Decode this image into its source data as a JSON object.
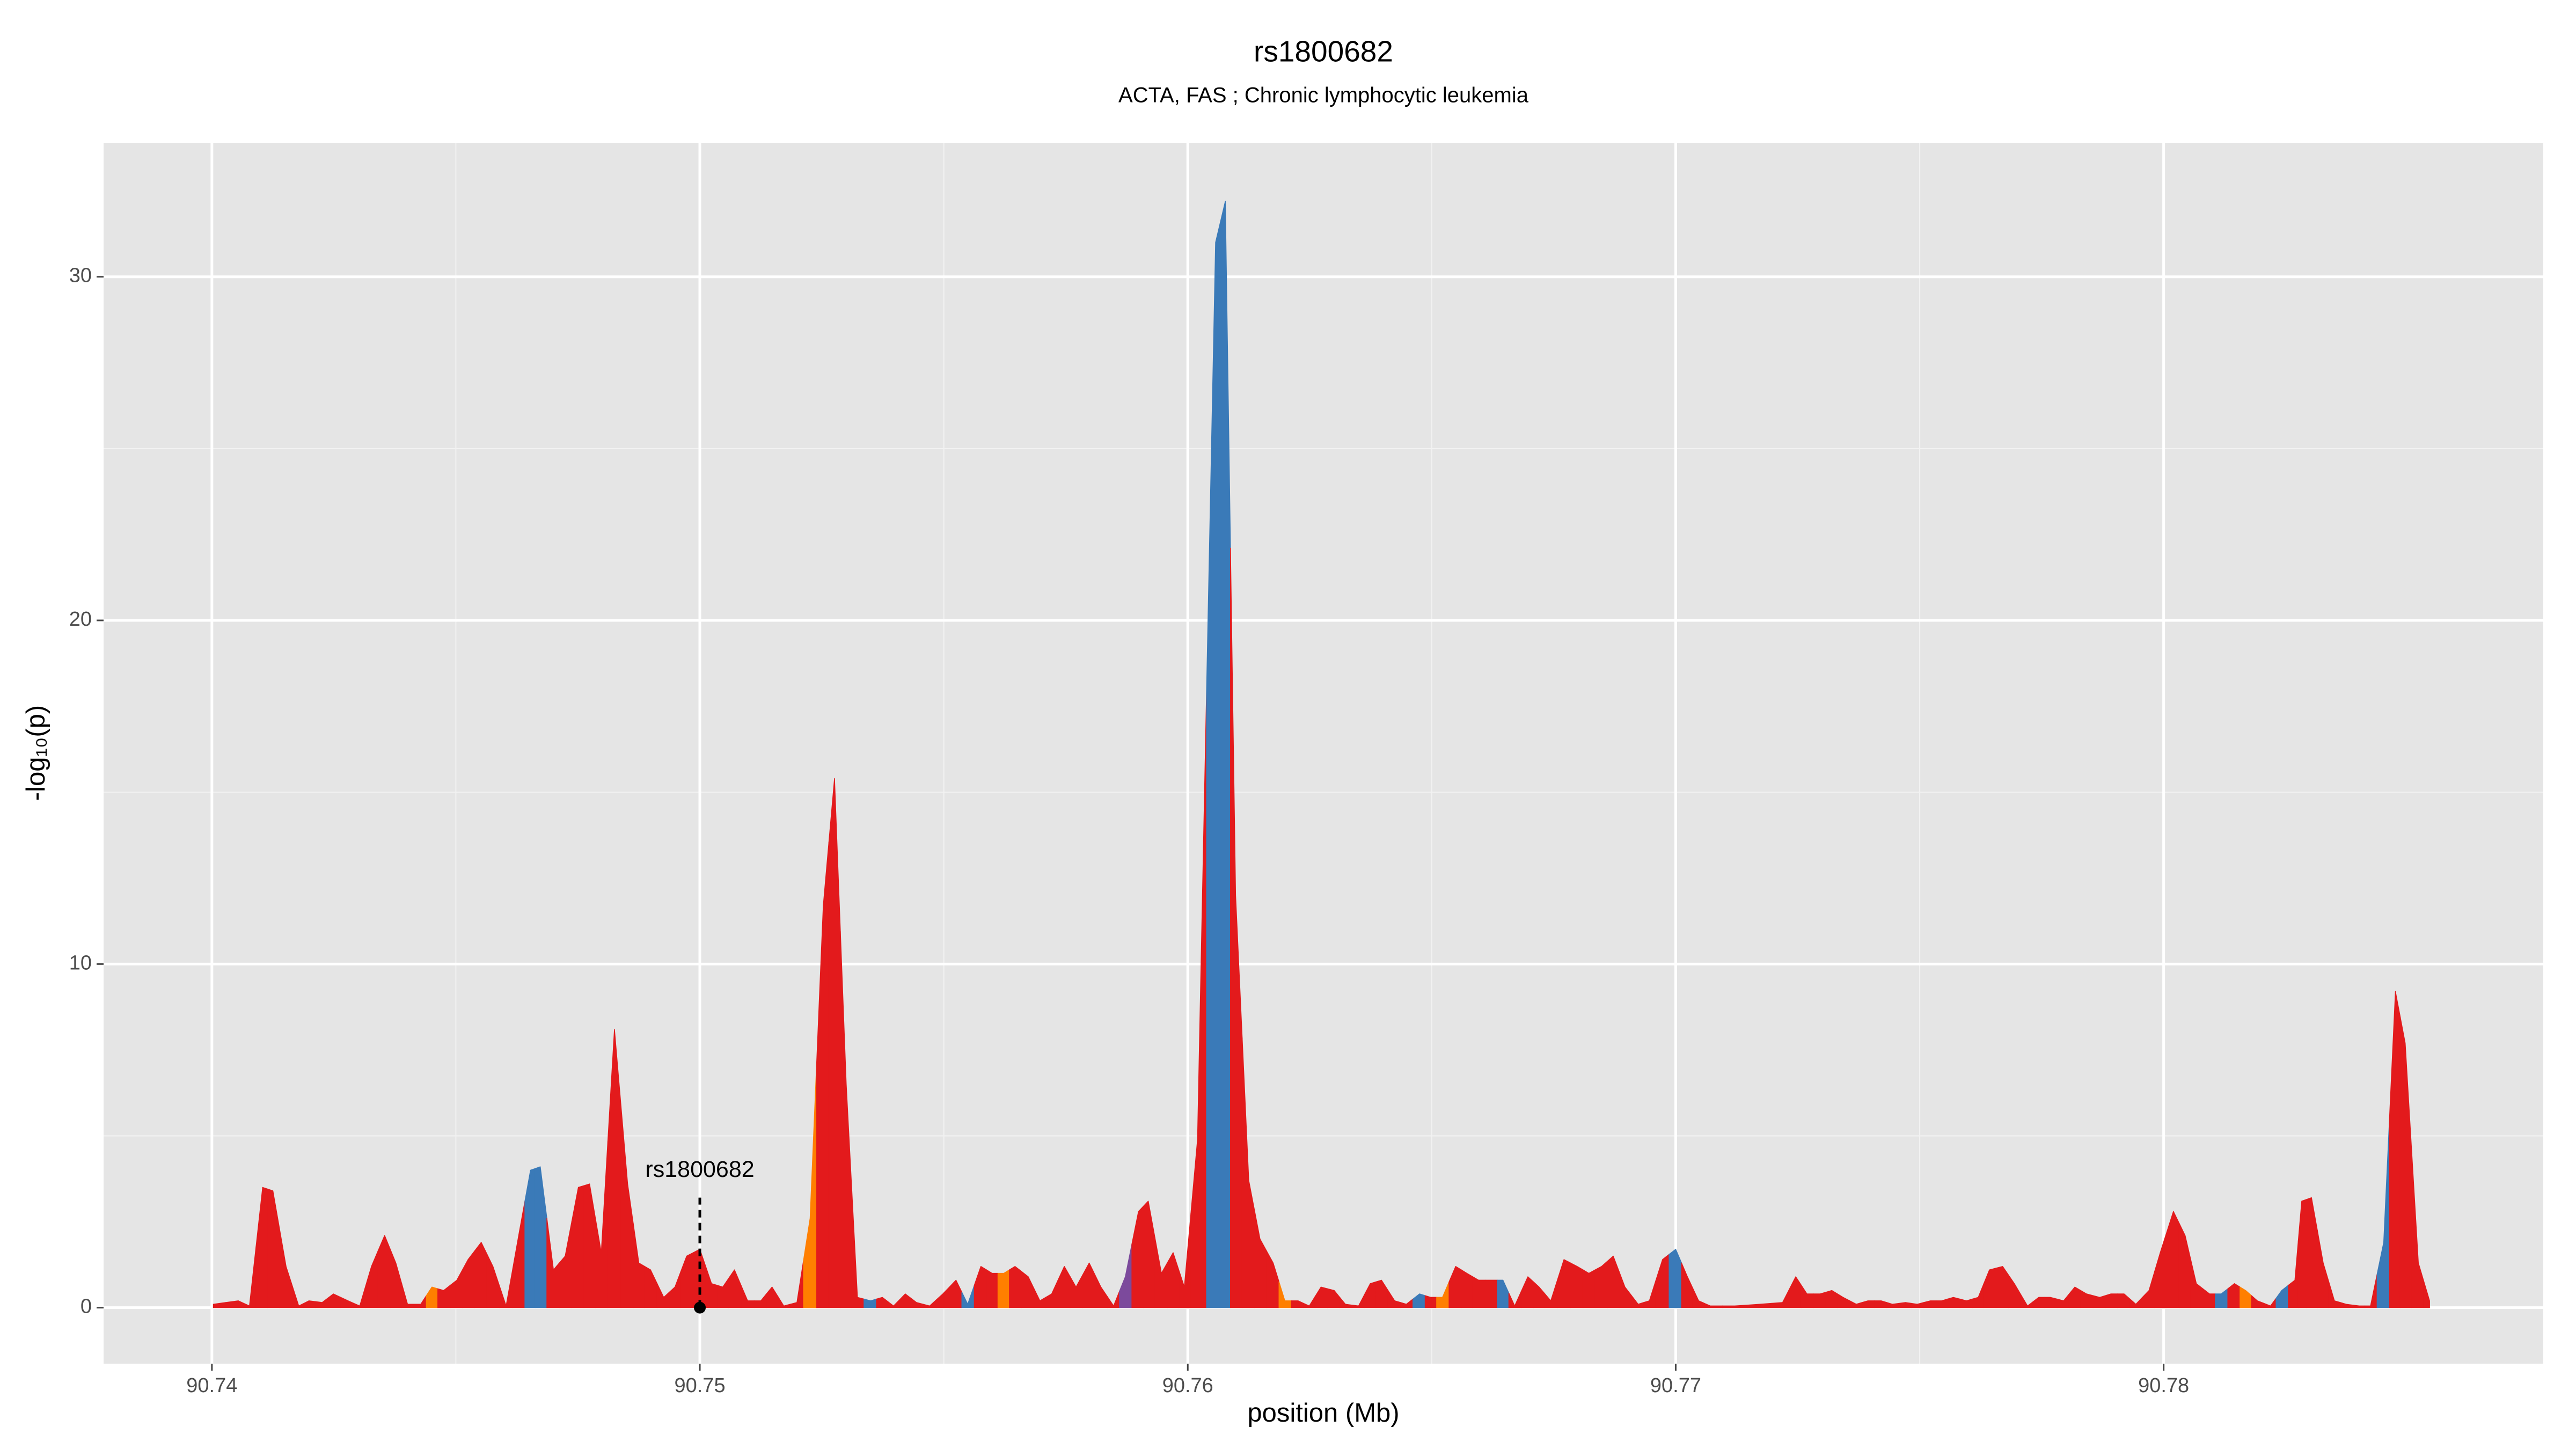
{
  "chart_data": {
    "type": "area",
    "title": "rs1800682",
    "subtitle": "ACTA, FAS ; Chronic lymphocytic leukemia",
    "xlabel": "position (Mb)",
    "ylabel": "-log₁₀(p)",
    "xlim": [
      90.73778,
      90.78778
    ],
    "ylim": [
      -1.63,
      33.9
    ],
    "xticks": [
      90.74,
      90.75,
      90.76,
      90.77,
      90.78
    ],
    "yticks": [
      0,
      10,
      20,
      30
    ],
    "grid": true,
    "palette": {
      "r": "#e31a1c",
      "b": "#3a7ab8",
      "o": "#ff7f00",
      "p": "#7c4a9c"
    },
    "x": [
      90.74003,
      90.74054,
      90.74077,
      90.74104,
      90.74125,
      90.74152,
      90.74178,
      90.74199,
      90.74226,
      90.74249,
      90.74279,
      90.74303,
      90.74327,
      90.74354,
      90.74377,
      90.74401,
      90.74428,
      90.74451,
      90.74475,
      90.74502,
      90.74525,
      90.74552,
      90.74576,
      90.74603,
      90.7463,
      90.74653,
      90.74673,
      90.747,
      90.74724,
      90.74751,
      90.74774,
      90.74798,
      90.74825,
      90.74852,
      90.74875,
      90.74899,
      90.74926,
      90.74949,
      90.74973,
      90.75,
      90.75024,
      90.75047,
      90.75071,
      90.75098,
      90.75125,
      90.75148,
      90.75172,
      90.75199,
      90.75226,
      90.75253,
      90.75276,
      90.753,
      90.75323,
      90.7535,
      90.75374,
      90.75397,
      90.75421,
      90.75444,
      90.75471,
      90.75498,
      90.75525,
      90.75549,
      90.75576,
      90.75599,
      90.75623,
      90.75646,
      90.75673,
      90.75697,
      90.75721,
      90.75747,
      90.75771,
      90.75798,
      90.75822,
      90.75848,
      90.75872,
      90.75899,
      90.75919,
      90.75946,
      90.7597,
      90.75993,
      90.7602,
      90.76057,
      90.76077,
      90.76098,
      90.76125,
      90.76148,
      90.76175,
      90.76199,
      90.76226,
      90.76249,
      90.76273,
      90.763,
      90.76323,
      90.7635,
      90.76374,
      90.76397,
      90.76424,
      90.76448,
      90.76475,
      90.76498,
      90.76522,
      90.76549,
      90.76572,
      90.76596,
      90.76623,
      90.76646,
      90.7667,
      90.76697,
      90.7672,
      90.76744,
      90.76771,
      90.76798,
      90.76822,
      90.76848,
      90.76872,
      90.76896,
      90.76923,
      90.76946,
      90.76973,
      90.77,
      90.77024,
      90.77047,
      90.77071,
      90.77121,
      90.77172,
      90.77219,
      90.77246,
      90.77269,
      90.77296,
      90.7732,
      90.77343,
      90.7737,
      90.77394,
      90.77421,
      90.77444,
      90.77471,
      90.77495,
      90.77522,
      90.77545,
      90.77569,
      90.77596,
      90.7762,
      90.77643,
      90.7767,
      90.77694,
      90.77721,
      90.77744,
      90.77768,
      90.77795,
      90.77818,
      90.77842,
      90.77869,
      90.77892,
      90.77919,
      90.77943,
      90.7797,
      90.77993,
      90.7802,
      90.78044,
      90.78067,
      90.78094,
      90.78118,
      90.78145,
      90.78168,
      90.78192,
      90.78219,
      90.78242,
      90.78269,
      90.78283,
      90.78303,
      90.78327,
      90.7835,
      90.78374,
      90.78401,
      90.78424,
      90.78451,
      90.78475,
      90.78495,
      90.78522,
      90.78545
    ],
    "values": [
      0.1,
      0.2,
      0.05,
      3.5,
      3.4,
      1.2,
      0.05,
      0.2,
      0.15,
      0.4,
      0.2,
      0.05,
      1.2,
      2.1,
      1.3,
      0.1,
      0.1,
      0.6,
      0.5,
      0.8,
      1.4,
      1.9,
      1.2,
      0.05,
      2.2,
      4.0,
      4.1,
      1.1,
      1.5,
      3.5,
      3.6,
      1.6,
      8.1,
      3.6,
      1.3,
      1.1,
      0.3,
      0.6,
      1.5,
      1.7,
      0.7,
      0.6,
      1.1,
      0.2,
      0.2,
      0.6,
      0.05,
      0.15,
      2.6,
      11.7,
      15.4,
      6.5,
      0.3,
      0.2,
      0.3,
      0.05,
      0.4,
      0.15,
      0.05,
      0.4,
      0.8,
      0.1,
      1.2,
      1.0,
      1.0,
      1.2,
      0.9,
      0.2,
      0.4,
      1.2,
      0.6,
      1.3,
      0.6,
      0.05,
      0.9,
      2.8,
      3.1,
      1.0,
      1.6,
      0.6,
      4.9,
      31.0,
      32.2,
      12.0,
      3.7,
      2.0,
      1.3,
      0.2,
      0.2,
      0.05,
      0.6,
      0.5,
      0.1,
      0.05,
      0.7,
      0.8,
      0.2,
      0.1,
      0.4,
      0.3,
      0.3,
      1.2,
      1.0,
      0.8,
      0.8,
      0.8,
      0.05,
      0.9,
      0.6,
      0.2,
      1.4,
      1.2,
      1.0,
      1.2,
      1.5,
      0.6,
      0.1,
      0.2,
      1.4,
      1.7,
      0.9,
      0.2,
      0.05,
      0.05,
      0.1,
      0.15,
      0.9,
      0.4,
      0.4,
      0.5,
      0.3,
      0.1,
      0.2,
      0.2,
      0.1,
      0.15,
      0.1,
      0.2,
      0.2,
      0.3,
      0.2,
      0.3,
      1.1,
      1.2,
      0.7,
      0.05,
      0.3,
      0.3,
      0.2,
      0.6,
      0.4,
      0.3,
      0.4,
      0.4,
      0.1,
      0.5,
      1.6,
      2.8,
      2.1,
      0.7,
      0.4,
      0.4,
      0.7,
      0.5,
      0.2,
      0.05,
      0.5,
      0.8,
      3.1,
      3.2,
      1.3,
      0.2,
      0.1,
      0.05,
      0.05,
      1.9,
      9.2,
      7.7,
      1.3,
      0.2
    ],
    "color_keys": [
      "r",
      "r",
      "r",
      "r",
      "r",
      "r",
      "r",
      "r",
      "r",
      "r",
      "r",
      "r",
      "r",
      "r",
      "r",
      "r",
      "r",
      "o",
      "r",
      "r",
      "r",
      "r",
      "r",
      "r",
      "r",
      "b",
      "b",
      "r",
      "r",
      "r",
      "r",
      "r",
      "r",
      "r",
      "r",
      "r",
      "r",
      "r",
      "r",
      "r",
      "r",
      "r",
      "r",
      "r",
      "r",
      "r",
      "r",
      "r",
      "o",
      "r",
      "r",
      "r",
      "r",
      "b",
      "r",
      "r",
      "r",
      "r",
      "r",
      "r",
      "r",
      "b",
      "r",
      "r",
      "o",
      "r",
      "r",
      "r",
      "r",
      "r",
      "r",
      "r",
      "r",
      "r",
      "p",
      "r",
      "r",
      "r",
      "r",
      "r",
      "r",
      "b",
      "b",
      "r",
      "r",
      "r",
      "r",
      "o",
      "r",
      "r",
      "r",
      "r",
      "r",
      "r",
      "r",
      "r",
      "r",
      "r",
      "b",
      "r",
      "o",
      "r",
      "r",
      "r",
      "r",
      "b",
      "r",
      "r",
      "r",
      "r",
      "r",
      "r",
      "r",
      "r",
      "r",
      "r",
      "r",
      "r",
      "r",
      "b",
      "r",
      "r",
      "r",
      "r",
      "r",
      "r",
      "r",
      "r",
      "r",
      "r",
      "r",
      "r",
      "r",
      "r",
      "r",
      "r",
      "r",
      "r",
      "r",
      "r",
      "r",
      "r",
      "r",
      "r",
      "r",
      "r",
      "r",
      "r",
      "r",
      "r",
      "r",
      "r",
      "r",
      "r",
      "r",
      "r",
      "r",
      "r",
      "r",
      "r",
      "r",
      "b",
      "r",
      "o",
      "r",
      "r",
      "b",
      "r",
      "r",
      "r",
      "r",
      "r",
      "r",
      "r",
      "r",
      "b",
      "r",
      "r",
      "r",
      "r"
    ],
    "annotation": {
      "text": "rs1800682",
      "x": 90.75,
      "y": 0
    }
  }
}
